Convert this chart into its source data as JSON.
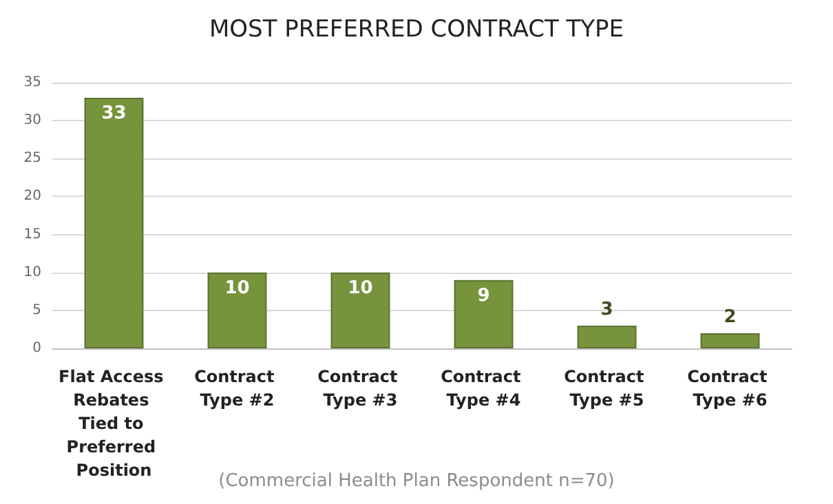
{
  "chart_data": {
    "type": "bar",
    "title": "MOST PREFERRED CONTRACT TYPE",
    "categories": [
      "Flat Access Rebates Tied to Preferred Position",
      "Contract Type #2",
      "Contract Type #3",
      "Contract Type #4",
      "Contract Type #5",
      "Contract Type #6"
    ],
    "values": [
      33,
      10,
      10,
      9,
      3,
      2
    ],
    "color": "#77933c",
    "ylim": [
      0,
      35
    ],
    "yticks": [
      0,
      5,
      10,
      15,
      20,
      25,
      30,
      35
    ],
    "grid": "y",
    "data_labels": true,
    "annotations": [
      "(Commercial Health Plan Respondent n=70)"
    ]
  }
}
